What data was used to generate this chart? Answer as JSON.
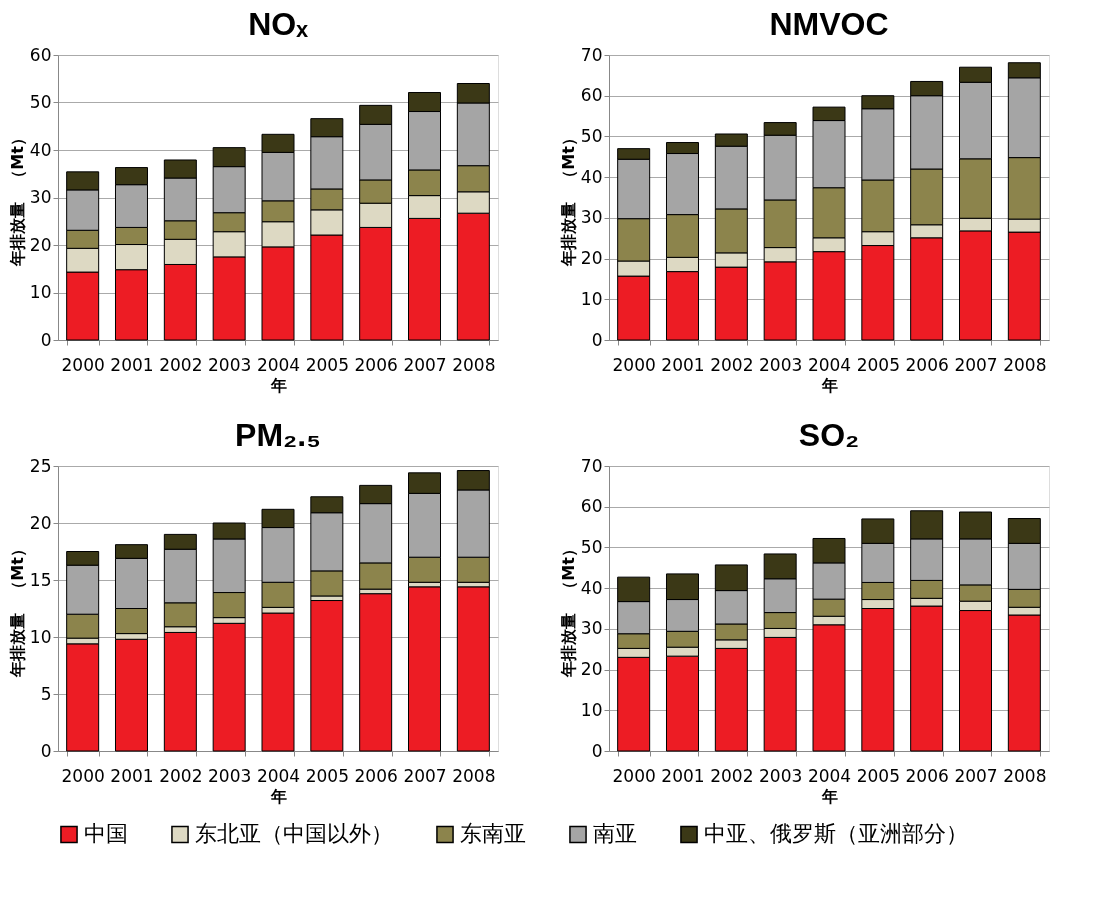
{
  "chart_data": [
    {
      "type": "bar",
      "title": "NOₓ",
      "xlabel": "年",
      "ylabel": "年排放量　（Mt）",
      "stacked": true,
      "grid": "y",
      "legend": "bottom",
      "categories": [
        "2000",
        "2001",
        "2002",
        "2003",
        "2004",
        "2005",
        "2006",
        "2007",
        "2008"
      ],
      "ylim": [
        0,
        60
      ],
      "yticks": [
        0,
        10,
        20,
        30,
        40,
        50,
        60
      ],
      "series": [
        {
          "name": "中国",
          "color": "#ed1c24",
          "values": [
            14.3,
            14.8,
            15.9,
            17.5,
            19.6,
            22.1,
            23.7,
            25.6,
            26.7
          ]
        },
        {
          "name": "东北亚（中国以外）",
          "color": "#ddd9c3",
          "values": [
            5.0,
            5.3,
            5.3,
            5.3,
            5.3,
            5.3,
            5.1,
            4.8,
            4.5
          ]
        },
        {
          "name": "东南亚",
          "color": "#8c844c",
          "values": [
            3.8,
            3.6,
            3.9,
            4.0,
            4.4,
            4.4,
            4.9,
            5.4,
            5.5
          ]
        },
        {
          "name": "南亚",
          "color": "#a5a5a5",
          "values": [
            8.5,
            9.0,
            9.0,
            9.7,
            10.2,
            11.0,
            11.7,
            12.3,
            13.2
          ]
        },
        {
          "name": "中亚、俄罗斯（亚洲部分）",
          "color": "#3b3816",
          "values": [
            3.8,
            3.6,
            3.8,
            4.0,
            3.8,
            3.8,
            4.0,
            4.0,
            4.1
          ]
        }
      ]
    },
    {
      "type": "bar",
      "title": "NMVOC",
      "xlabel": "年",
      "ylabel": "年排放量　（Mt）",
      "stacked": true,
      "grid": "y",
      "legend": "bottom",
      "categories": [
        "2000",
        "2001",
        "2002",
        "2003",
        "2004",
        "2005",
        "2006",
        "2007",
        "2008"
      ],
      "ylim": [
        0,
        70
      ],
      "yticks": [
        0,
        10,
        20,
        30,
        40,
        50,
        60,
        70
      ],
      "series": [
        {
          "name": "中国",
          "color": "#ed1c24",
          "values": [
            15.7,
            16.8,
            17.9,
            19.2,
            21.7,
            23.2,
            25.1,
            26.8,
            26.5
          ]
        },
        {
          "name": "东北亚（中国以外）",
          "color": "#ddd9c3",
          "values": [
            3.7,
            3.5,
            3.5,
            3.5,
            3.4,
            3.4,
            3.2,
            3.1,
            3.2
          ]
        },
        {
          "name": "东南亚",
          "color": "#8c844c",
          "values": [
            10.4,
            10.5,
            10.8,
            11.7,
            12.3,
            12.7,
            13.7,
            14.6,
            15.1
          ]
        },
        {
          "name": "南亚",
          "color": "#a5a5a5",
          "values": [
            14.6,
            15.0,
            15.4,
            15.9,
            16.5,
            17.5,
            18.0,
            18.8,
            19.6
          ]
        },
        {
          "name": "中亚、俄罗斯（亚洲部分）",
          "color": "#3b3816",
          "values": [
            2.6,
            2.7,
            3.0,
            3.1,
            3.3,
            3.2,
            3.5,
            3.7,
            3.7
          ]
        }
      ]
    },
    {
      "type": "bar",
      "title": "PM₂.₅",
      "xlabel": "年",
      "ylabel": "年排放量　（Mt）",
      "stacked": true,
      "grid": "y",
      "legend": "bottom",
      "categories": [
        "2000",
        "2001",
        "2002",
        "2003",
        "2004",
        "2005",
        "2006",
        "2007",
        "2008"
      ],
      "ylim": [
        0,
        25
      ],
      "yticks": [
        0,
        5,
        10,
        15,
        20,
        25
      ],
      "series": [
        {
          "name": "中国",
          "color": "#ed1c24",
          "values": [
            9.4,
            9.8,
            10.4,
            11.2,
            12.1,
            13.2,
            13.8,
            14.4,
            14.4
          ]
        },
        {
          "name": "东北亚（中国以外）",
          "color": "#ddd9c3",
          "values": [
            0.5,
            0.5,
            0.5,
            0.5,
            0.5,
            0.4,
            0.4,
            0.4,
            0.4
          ]
        },
        {
          "name": "东南亚",
          "color": "#8c844c",
          "values": [
            2.1,
            2.2,
            2.1,
            2.2,
            2.2,
            2.2,
            2.3,
            2.2,
            2.2
          ]
        },
        {
          "name": "南亚",
          "color": "#a5a5a5",
          "values": [
            4.3,
            4.4,
            4.7,
            4.7,
            4.8,
            5.1,
            5.2,
            5.6,
            5.9
          ]
        },
        {
          "name": "中亚、俄罗斯（亚洲部分）",
          "color": "#3b3816",
          "values": [
            1.2,
            1.2,
            1.3,
            1.4,
            1.6,
            1.4,
            1.6,
            1.8,
            1.7
          ]
        }
      ]
    },
    {
      "type": "bar",
      "title": "SO₂",
      "xlabel": "年",
      "ylabel": "年排放量　（Mt）",
      "stacked": true,
      "grid": "y",
      "legend": "bottom",
      "categories": [
        "2000",
        "2001",
        "2002",
        "2003",
        "2004",
        "2005",
        "2006",
        "2007",
        "2008"
      ],
      "ylim": [
        0,
        70
      ],
      "yticks": [
        0,
        10,
        20,
        30,
        40,
        50,
        60,
        70
      ],
      "series": [
        {
          "name": "中国",
          "color": "#ed1c24",
          "values": [
            23.0,
            23.3,
            25.2,
            27.9,
            31.0,
            35.0,
            35.6,
            34.5,
            33.4
          ]
        },
        {
          "name": "东北亚（中国以外）",
          "color": "#ddd9c3",
          "values": [
            2.2,
            2.2,
            2.1,
            2.2,
            2.1,
            2.2,
            1.9,
            2.3,
            1.9
          ]
        },
        {
          "name": "东南亚",
          "color": "#8c844c",
          "values": [
            3.6,
            3.9,
            3.9,
            3.9,
            4.2,
            4.2,
            4.4,
            4.0,
            4.4
          ]
        },
        {
          "name": "南亚",
          "color": "#a5a5a5",
          "values": [
            7.9,
            7.8,
            8.2,
            8.3,
            8.9,
            9.6,
            10.2,
            11.3,
            11.3
          ]
        },
        {
          "name": "中亚、俄罗斯（亚洲部分）",
          "color": "#3b3816",
          "values": [
            6.0,
            6.3,
            6.3,
            6.1,
            6.0,
            6.0,
            6.9,
            6.6,
            6.1
          ]
        }
      ]
    }
  ]
}
